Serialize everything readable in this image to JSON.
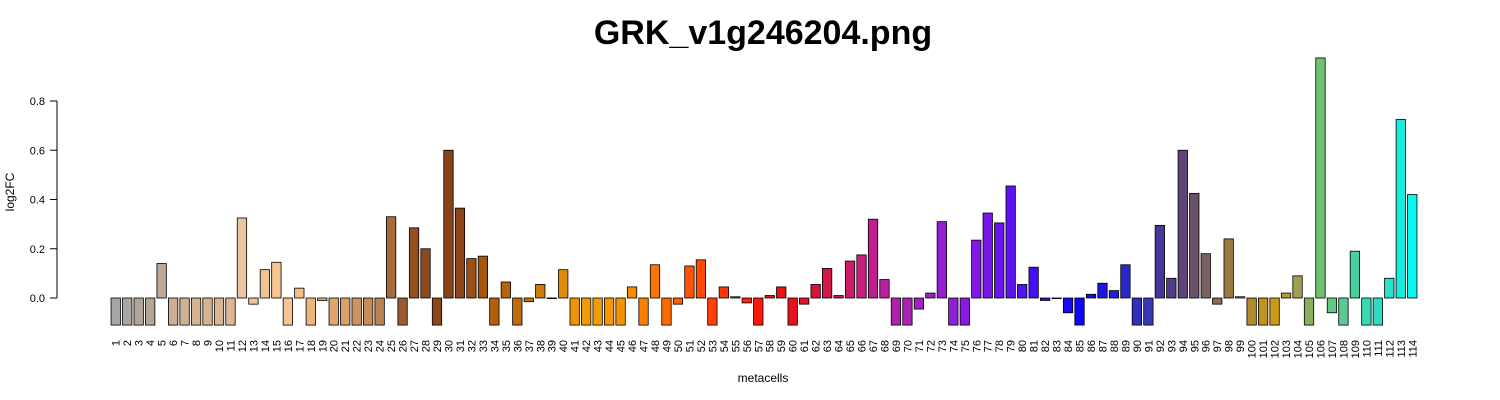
{
  "chart_data": {
    "type": "bar",
    "title": "GRK_v1g246204.png",
    "xlabel": "metacells",
    "ylabel": "log2FC",
    "ylim": [
      -0.11,
      0.98
    ],
    "yticks": [
      0.0,
      0.2,
      0.4,
      0.6,
      0.8
    ],
    "ytick_labels": [
      "0.0",
      "0.2",
      "0.4",
      "0.6",
      "0.8"
    ],
    "grid": false,
    "categories": [
      "1",
      "2",
      "3",
      "4",
      "5",
      "6",
      "7",
      "8",
      "9",
      "10",
      "11",
      "12",
      "13",
      "14",
      "15",
      "16",
      "17",
      "18",
      "19",
      "20",
      "21",
      "22",
      "23",
      "24",
      "25",
      "26",
      "27",
      "28",
      "29",
      "30",
      "31",
      "32",
      "33",
      "34",
      "35",
      "36",
      "37",
      "38",
      "39",
      "40",
      "41",
      "42",
      "43",
      "44",
      "45",
      "46",
      "47",
      "48",
      "49",
      "50",
      "51",
      "52",
      "53",
      "54",
      "55",
      "56",
      "57",
      "58",
      "59",
      "60",
      "61",
      "62",
      "63",
      "64",
      "65",
      "66",
      "67",
      "68",
      "69",
      "70",
      "71",
      "72",
      "73",
      "74",
      "75",
      "76",
      "77",
      "78",
      "79",
      "80",
      "81",
      "82",
      "83",
      "84",
      "85",
      "86",
      "87",
      "88",
      "89",
      "90",
      "91",
      "92",
      "93",
      "94",
      "95",
      "96",
      "97",
      "98",
      "99",
      "100",
      "101",
      "102",
      "103",
      "104",
      "105",
      "106",
      "107",
      "108",
      "109",
      "110",
      "111",
      "112",
      "113",
      "114"
    ],
    "values": [
      -0.11,
      -0.11,
      -0.11,
      -0.11,
      0.14,
      -0.11,
      -0.11,
      -0.11,
      -0.11,
      -0.11,
      -0.11,
      0.325,
      -0.025,
      0.115,
      0.145,
      -0.11,
      0.04,
      -0.11,
      -0.01,
      -0.11,
      -0.11,
      -0.11,
      -0.11,
      -0.11,
      0.33,
      -0.11,
      0.285,
      0.2,
      -0.11,
      0.6,
      0.365,
      0.16,
      0.17,
      -0.11,
      0.065,
      -0.11,
      -0.015,
      0.055,
      0.0,
      0.115,
      -0.11,
      -0.11,
      -0.11,
      -0.11,
      -0.11,
      0.045,
      -0.11,
      0.135,
      -0.11,
      -0.025,
      0.13,
      0.155,
      -0.11,
      0.045,
      0.005,
      -0.02,
      -0.11,
      0.01,
      0.045,
      -0.11,
      -0.025,
      0.055,
      0.12,
      0.01,
      0.15,
      0.175,
      0.32,
      0.075,
      -0.11,
      -0.11,
      -0.045,
      0.02,
      0.31,
      -0.11,
      -0.11,
      0.235,
      0.345,
      0.305,
      0.455,
      0.055,
      0.125,
      -0.01,
      0.0,
      -0.06,
      -0.11,
      0.015,
      0.06,
      0.03,
      0.135,
      -0.11,
      -0.11,
      0.295,
      0.08,
      0.6,
      0.425,
      0.18,
      -0.025,
      0.24,
      0.005,
      -0.11,
      -0.11,
      -0.11,
      0.02,
      0.09,
      -0.11,
      0.975,
      -0.06,
      -0.11,
      0.19,
      -0.11,
      -0.11,
      0.08,
      0.725,
      0.42
    ],
    "colors": [
      "#a6a6a6",
      "#aaa6a1",
      "#aea59c",
      "#b3a596",
      "#bdaa96",
      "#c9af94",
      "#cfb293",
      "#d3b493",
      "#d6b493",
      "#d9b594",
      "#dcb696",
      "#e9c6a0",
      "#ecc59d",
      "#f0c596",
      "#f5c592",
      "#f7c594",
      "#f6bd84",
      "#eeb57d",
      "#e8af78",
      "#dfa571",
      "#d89f6a",
      "#cf9461",
      "#c78c58",
      "#bc8250",
      "#a66b3c",
      "#9a5c2f",
      "#914f23",
      "#8d4a1f",
      "#8a461c",
      "#884218",
      "#8c4516",
      "#9b5113",
      "#a6580f",
      "#b0600c",
      "#b7650a",
      "#be6b08",
      "#c57308",
      "#cc7b08",
      "#d48308",
      "#de8c07",
      "#e89507",
      "#ef9a06",
      "#f39c05",
      "#f59804",
      "#f79203",
      "#f98a02",
      "#fb7f01",
      "#fd7501",
      "#fe6a01",
      "#fe5e02",
      "#fe5403",
      "#fe4a04",
      "#fe4005",
      "#fe3606",
      "#fe2e07",
      "#fd2408",
      "#fa1a0a",
      "#f1140e",
      "#eb1214",
      "#e5111c",
      "#df1228",
      "#d91436",
      "#d41848",
      "#cf1a58",
      "#cb1c6a",
      "#c81e7c",
      "#c0208e",
      "#b8219c",
      "#b022a8",
      "#a822b4",
      "#a022c0",
      "#9a22c8",
      "#9420d2",
      "#8e1ed8",
      "#881ae0",
      "#8118e6",
      "#7716ea",
      "#6a14ee",
      "#5e12f0",
      "#5210f4",
      "#440ef6",
      "#360cf8",
      "#280afa",
      "#1808fa",
      "#0c06fb",
      "#1010f0",
      "#1c18e4",
      "#2020d8",
      "#2828cc",
      "#3030c0",
      "#3838b0",
      "#46389a",
      "#523c88",
      "#5e4478",
      "#6a5068",
      "#7a5e60",
      "#8a6c50",
      "#9a7a40",
      "#a88636",
      "#b48a2a",
      "#c09220",
      "#c99a1a",
      "#b89a3a",
      "#a0a050",
      "#88b060",
      "#70c070",
      "#60c880",
      "#58cc90",
      "#48d0a0",
      "#38d8b0",
      "#30dcc0",
      "#28e0cc",
      "#18ecdc",
      "#08f8f0"
    ]
  }
}
